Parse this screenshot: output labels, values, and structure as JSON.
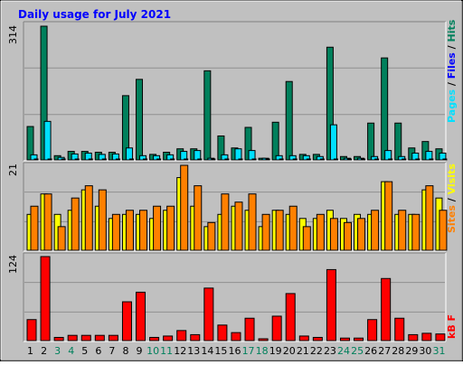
{
  "title": "Daily usage for July 2021",
  "colors": {
    "background": "#c0c0c0",
    "title": "#0000ff",
    "pages": "#00805c",
    "files": "#00e0ff",
    "hits": "#00805c",
    "visits": "#ffff00",
    "sites": "#ff8000",
    "kbytes": "#ff0000",
    "weekend_label": "#00805c",
    "weekday_label": "#000000"
  },
  "panels": {
    "hits": {
      "max_label": "314",
      "legend": [
        "Pages",
        "Files",
        "Hits"
      ]
    },
    "visits": {
      "max_label": "21",
      "legend": [
        "Sites",
        "Visits"
      ]
    },
    "kbytes": {
      "max_label": "124",
      "legend": [
        "kB F"
      ]
    }
  },
  "chart_data": [
    {
      "type": "bar",
      "title": "Daily usage for July 2021",
      "categories": [
        "1",
        "2",
        "3",
        "4",
        "5",
        "6",
        "7",
        "8",
        "9",
        "10",
        "11",
        "12",
        "13",
        "14",
        "15",
        "16",
        "17",
        "18",
        "19",
        "20",
        "21",
        "22",
        "23",
        "24",
        "25",
        "26",
        "27",
        "28",
        "29",
        "30",
        "31"
      ],
      "weekend_days": [
        "3",
        "4",
        "10",
        "11",
        "17",
        "18",
        "24",
        "25",
        "31"
      ],
      "ylim": [
        0,
        314
      ],
      "series": [
        {
          "name": "Hits",
          "values": [
            80,
            314,
            12,
            22,
            22,
            20,
            20,
            152,
            190,
            15,
            20,
            28,
            28,
            210,
            58,
            30,
            78,
            6,
            90,
            185,
            15,
            15,
            265,
            10,
            10,
            88,
            240,
            88,
            30,
            45,
            28
          ]
        },
        {
          "name": "Files",
          "values": [
            14,
            92,
            8,
            16,
            18,
            15,
            16,
            30,
            12,
            12,
            14,
            22,
            24,
            6,
            14,
            28,
            24,
            6,
            12,
            12,
            12,
            10,
            84,
            6,
            6,
            10,
            24,
            10,
            18,
            22,
            18
          ]
        },
        {
          "name": "Pages",
          "values": [
            4,
            4,
            2,
            4,
            4,
            4,
            2,
            4,
            4,
            4,
            4,
            4,
            4,
            4,
            2,
            4,
            4,
            4,
            4,
            4,
            4,
            4,
            4,
            4,
            4,
            4,
            4,
            4,
            4,
            4,
            4
          ]
        }
      ]
    },
    {
      "type": "bar",
      "categories": [
        "1",
        "2",
        "3",
        "4",
        "5",
        "6",
        "7",
        "8",
        "9",
        "10",
        "11",
        "12",
        "13",
        "14",
        "15",
        "16",
        "17",
        "18",
        "19",
        "20",
        "21",
        "22",
        "23",
        "24",
        "25",
        "26",
        "27",
        "28",
        "29",
        "30",
        "31"
      ],
      "ylim": [
        0,
        21
      ],
      "series": [
        {
          "name": "Visits",
          "values": [
            9,
            14,
            9,
            10,
            15,
            11,
            8,
            9,
            9,
            8,
            10,
            18,
            11,
            6,
            9,
            11,
            10,
            6,
            10,
            9,
            8,
            8,
            10,
            8,
            9,
            9,
            17,
            9,
            9,
            15,
            13
          ]
        },
        {
          "name": "Sites",
          "values": [
            11,
            14,
            6,
            13,
            16,
            15,
            9,
            10,
            10,
            11,
            11,
            21,
            16,
            7,
            14,
            12,
            14,
            9,
            10,
            11,
            6,
            9,
            8,
            7,
            8,
            10,
            17,
            10,
            9,
            16,
            10
          ]
        }
      ]
    },
    {
      "type": "bar",
      "categories": [
        "1",
        "2",
        "3",
        "4",
        "5",
        "6",
        "7",
        "8",
        "9",
        "10",
        "11",
        "12",
        "13",
        "14",
        "15",
        "16",
        "17",
        "18",
        "19",
        "20",
        "21",
        "22",
        "23",
        "24",
        "25",
        "26",
        "27",
        "28",
        "29",
        "30",
        "31"
      ],
      "ylim": [
        0,
        124
      ],
      "series": [
        {
          "name": "kB F",
          "values": [
            32,
            124,
            6,
            9,
            9,
            9,
            9,
            58,
            72,
            6,
            8,
            16,
            10,
            78,
            24,
            13,
            34,
            4,
            37,
            70,
            8,
            6,
            105,
            5,
            5,
            32,
            92,
            34,
            10,
            12,
            11
          ]
        }
      ]
    }
  ]
}
